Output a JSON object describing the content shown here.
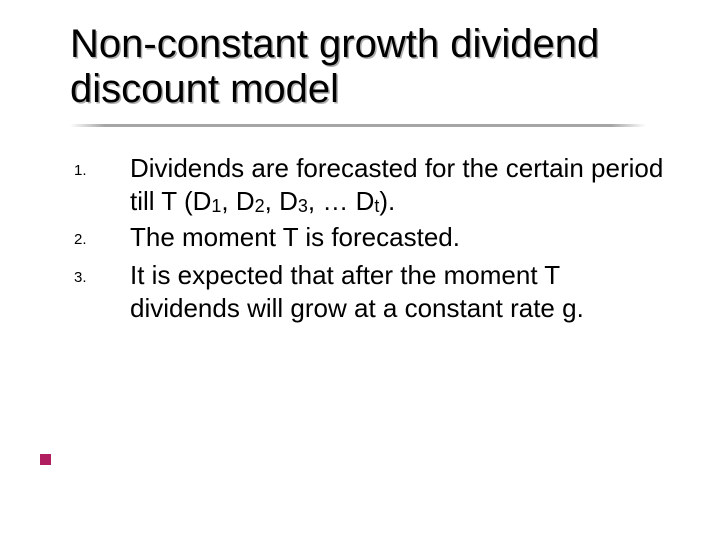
{
  "title": "Non-constant growth dividend discount model",
  "accent_color": "#b11e5f",
  "items": [
    {
      "num": "1.",
      "parts": [
        {
          "t": "Dividends are forecasted for the certain period till T (D"
        },
        {
          "t": "1",
          "sub": true
        },
        {
          "t": ", D"
        },
        {
          "t": "2",
          "sub": true
        },
        {
          "t": ", D"
        },
        {
          "t": "3",
          "sub": true
        },
        {
          "t": ", … D"
        },
        {
          "t": "t",
          "sub": true
        },
        {
          "t": ")."
        }
      ]
    },
    {
      "num": "2.",
      "parts": [
        {
          "t": "The moment T is forecasted."
        }
      ]
    },
    {
      "num": "3.",
      "parts": [
        {
          "t": "It is expected that after the moment T dividends will grow at a constant rate g."
        }
      ]
    }
  ],
  "title_fontsize": 40,
  "body_fontsize": 26,
  "number_fontsize": 15,
  "subscript_fontsize": 18,
  "background_color": "#ffffff",
  "text_color": "#000000"
}
